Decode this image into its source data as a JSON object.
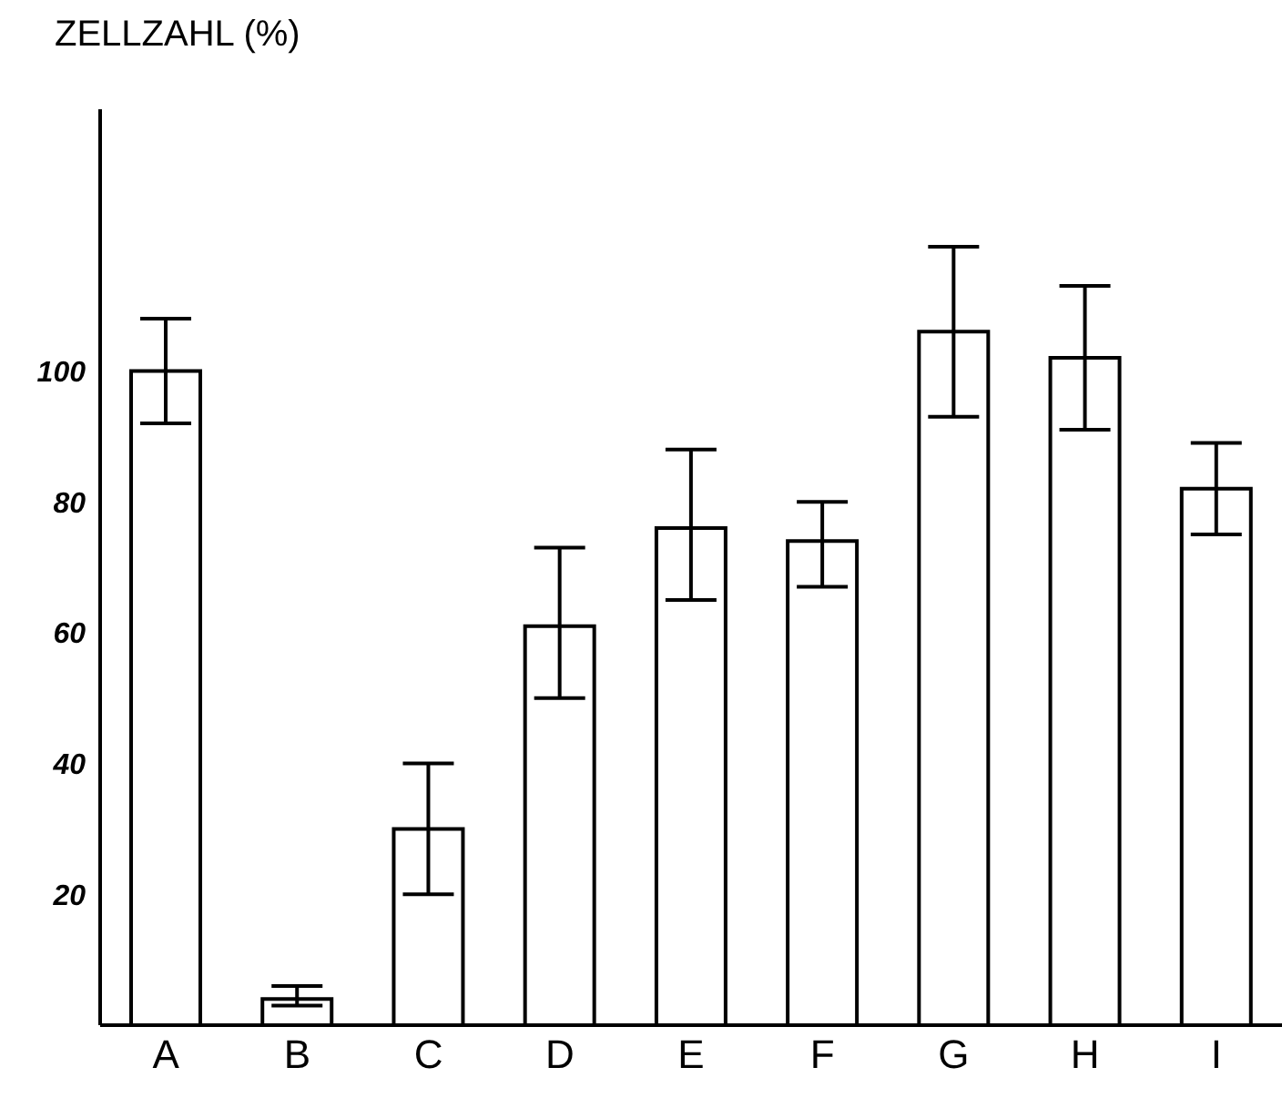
{
  "chart_data": {
    "type": "bar",
    "ylabel": "ZELLZAHL (%)",
    "categories": [
      "A",
      "B",
      "C",
      "D",
      "E",
      "F",
      "G",
      "H",
      "I"
    ],
    "values": [
      100,
      4,
      30,
      61,
      76,
      74,
      106,
      102,
      82
    ],
    "errors": [
      [
        92,
        108
      ],
      [
        3,
        6
      ],
      [
        20,
        40
      ],
      [
        50,
        73
      ],
      [
        65,
        88
      ],
      [
        67,
        80
      ],
      [
        93,
        119
      ],
      [
        91,
        113
      ],
      [
        75,
        89
      ]
    ],
    "color": "#ffffff",
    "ylim": [
      0,
      140
    ],
    "yticks": [
      20,
      40,
      60,
      80,
      100
    ],
    "grid": false
  }
}
